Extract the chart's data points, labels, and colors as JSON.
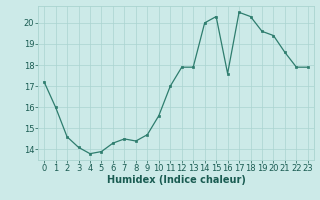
{
  "x": [
    0,
    1,
    2,
    3,
    4,
    5,
    6,
    7,
    8,
    9,
    10,
    11,
    12,
    13,
    14,
    15,
    16,
    17,
    18,
    19,
    20,
    21,
    22,
    23
  ],
  "y": [
    17.2,
    16.0,
    14.6,
    14.1,
    13.8,
    13.9,
    14.3,
    14.5,
    14.4,
    14.7,
    15.6,
    17.0,
    17.9,
    17.9,
    20.0,
    20.3,
    17.6,
    20.5,
    20.3,
    19.6,
    19.4,
    18.6,
    17.9,
    17.9
  ],
  "xlabel": "Humidex (Indice chaleur)",
  "xlim": [
    -0.5,
    23.5
  ],
  "ylim": [
    13.5,
    20.8
  ],
  "yticks": [
    14,
    15,
    16,
    17,
    18,
    19,
    20
  ],
  "xticks": [
    0,
    1,
    2,
    3,
    4,
    5,
    6,
    7,
    8,
    9,
    10,
    11,
    12,
    13,
    14,
    15,
    16,
    17,
    18,
    19,
    20,
    21,
    22,
    23
  ],
  "line_color": "#2e7d6e",
  "marker_color": "#2e7d6e",
  "bg_color": "#cceae8",
  "grid_color": "#aad4d0",
  "label_color": "#1a5c52",
  "font_size_xlabel": 7,
  "font_size_ticks": 6
}
